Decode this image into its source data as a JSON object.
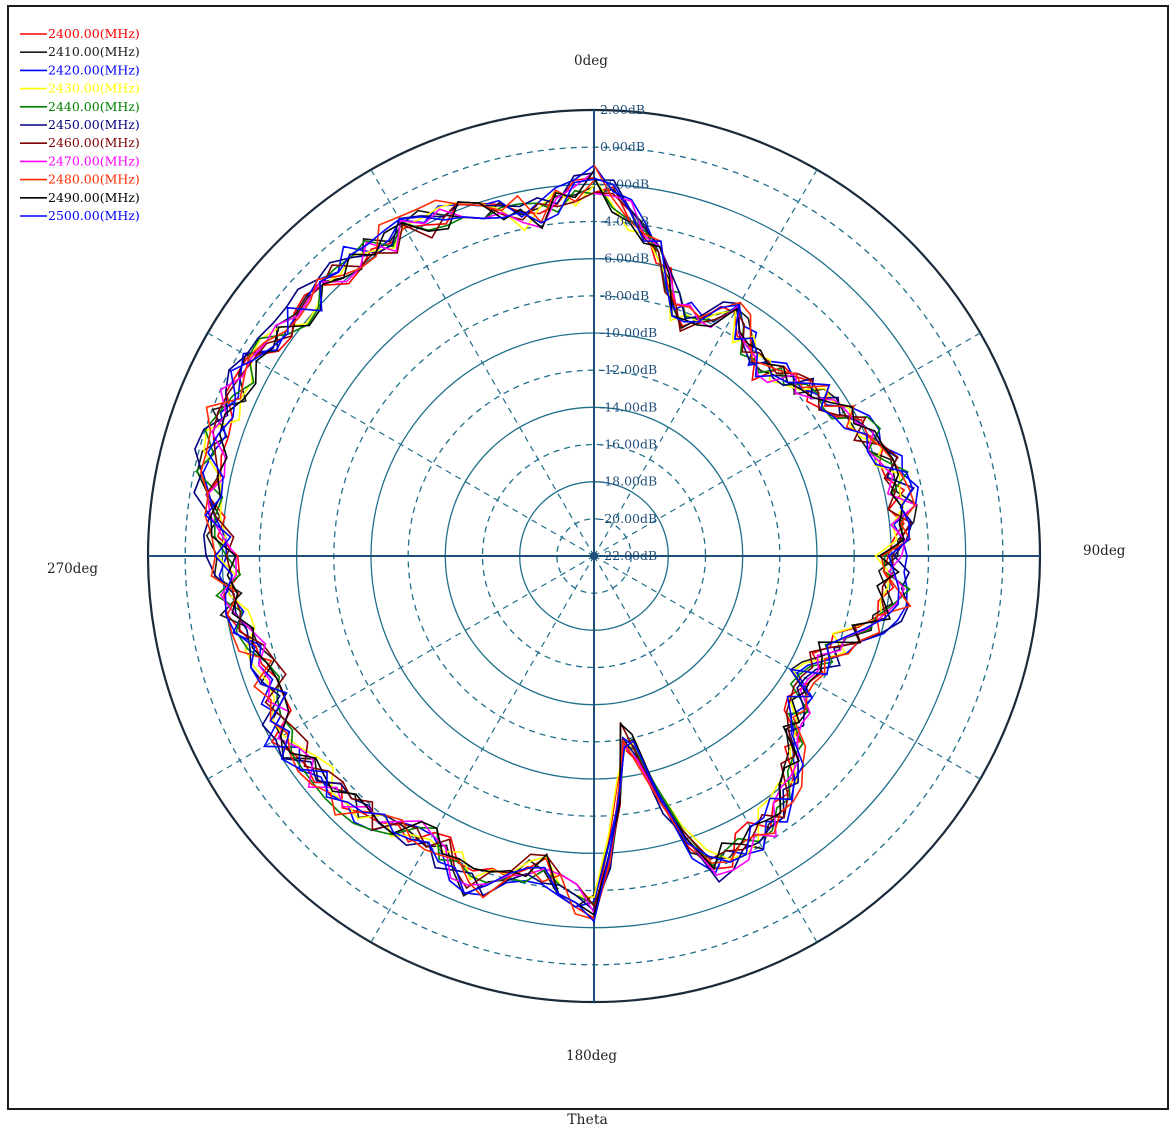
{
  "chart_data": {
    "type": "polar-line",
    "title": "",
    "xlabel": "Theta",
    "angle_unit": "deg",
    "angle_direction": "clockwise",
    "zero_at": "top",
    "angle_labels": [
      {
        "angle": 0,
        "text": "0deg"
      },
      {
        "angle": 90,
        "text": "90deg"
      },
      {
        "angle": 180,
        "text": "180deg"
      },
      {
        "angle": 270,
        "text": "270deg"
      }
    ],
    "radial_unit": "dB",
    "radial_range": [
      -22,
      2
    ],
    "radial_ticks": [
      {
        "value": 2,
        "text": "2.00dB"
      },
      {
        "value": 0,
        "text": "0.00dB"
      },
      {
        "value": -2,
        "text": "-2.00dB"
      },
      {
        "value": -4,
        "text": "-4.00dB"
      },
      {
        "value": -6,
        "text": "-6.00dB"
      },
      {
        "value": -8,
        "text": "-8.00dB"
      },
      {
        "value": -10,
        "text": "-10.00dB"
      },
      {
        "value": -12,
        "text": "-12.00dB"
      },
      {
        "value": -14,
        "text": "-14.00dB"
      },
      {
        "value": -16,
        "text": "-16.00dB"
      },
      {
        "value": -18,
        "text": "-18.00dB"
      },
      {
        "value": -20,
        "text": "-20.00dB"
      },
      {
        "value": -22,
        "text": "-22.00dB"
      }
    ],
    "grid": true,
    "legend_position": "top-left",
    "series_shape_deg": [
      {
        "angle": 0,
        "value": -1.8
      },
      {
        "angle": 10,
        "value": -4.5
      },
      {
        "angle": 20,
        "value": -8.5
      },
      {
        "angle": 30,
        "value": -7.0
      },
      {
        "angle": 40,
        "value": -8.5
      },
      {
        "angle": 50,
        "value": -7.5
      },
      {
        "angle": 60,
        "value": -6.5
      },
      {
        "angle": 70,
        "value": -5.5
      },
      {
        "angle": 80,
        "value": -5.0
      },
      {
        "angle": 90,
        "value": -6.0
      },
      {
        "angle": 100,
        "value": -5.5
      },
      {
        "angle": 110,
        "value": -8.0
      },
      {
        "angle": 120,
        "value": -9.0
      },
      {
        "angle": 130,
        "value": -8.0
      },
      {
        "angle": 140,
        "value": -5.5
      },
      {
        "angle": 150,
        "value": -4.5
      },
      {
        "angle": 160,
        "value": -4.0
      },
      {
        "angle": 170,
        "value": -13.0
      },
      {
        "angle": 180,
        "value": -3.0
      },
      {
        "angle": 190,
        "value": -5.0
      },
      {
        "angle": 200,
        "value": -3.0
      },
      {
        "angle": 210,
        "value": -4.5
      },
      {
        "angle": 220,
        "value": -3.5
      },
      {
        "angle": 230,
        "value": -3.0
      },
      {
        "angle": 240,
        "value": -2.5
      },
      {
        "angle": 250,
        "value": -3.5
      },
      {
        "angle": 260,
        "value": -2.5
      },
      {
        "angle": 270,
        "value": -2.0
      },
      {
        "angle": 280,
        "value": -1.0
      },
      {
        "angle": 290,
        "value": -0.5
      },
      {
        "angle": 300,
        "value": -1.0
      },
      {
        "angle": 310,
        "value": -1.5
      },
      {
        "angle": 320,
        "value": -1.5
      },
      {
        "angle": 330,
        "value": -1.8
      },
      {
        "angle": 340,
        "value": -1.8
      },
      {
        "angle": 350,
        "value": -3.5
      }
    ],
    "series": [
      {
        "name": "2400.00(MHz)",
        "color": "#ff0000"
      },
      {
        "name": "2410.00(MHz)",
        "color": "#1a1a1a"
      },
      {
        "name": "2420.00(MHz)",
        "color": "#0000ff"
      },
      {
        "name": "2430.00(MHz)",
        "color": "#ffff00"
      },
      {
        "name": "2440.00(MHz)",
        "color": "#008000"
      },
      {
        "name": "2450.00(MHz)",
        "color": "#000080"
      },
      {
        "name": "2460.00(MHz)",
        "color": "#800000"
      },
      {
        "name": "2470.00(MHz)",
        "color": "#ff00ff"
      },
      {
        "name": "2480.00(MHz)",
        "color": "#ff2a00"
      },
      {
        "name": "2490.00(MHz)",
        "color": "#000000"
      },
      {
        "name": "2500.00(MHz)",
        "color": "#0000ff"
      }
    ],
    "colors": {
      "grid": "#1f6f8b",
      "outer_ring": "#1a2a3a",
      "axis": "#1f4e79"
    }
  }
}
